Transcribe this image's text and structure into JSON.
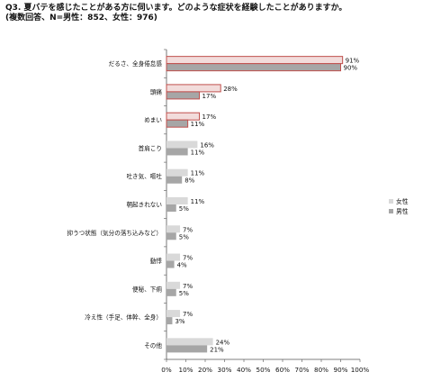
{
  "title_line1": "Q3. 夏バテを感じたことがある方に伺います。どのような症状を経験したことがありますか。",
  "title_line2": "(複数回答、N=男性：852、女性：976)",
  "colors": {
    "female": "#d9d9d9",
    "male": "#a6a6a6",
    "highlight": "#c0504d",
    "female_highlight": "#f2dcdb",
    "axis": "#555555"
  },
  "chart_data": {
    "type": "bar",
    "orientation": "horizontal",
    "categories": [
      "だるさ、全身倦怠感",
      "頭痛",
      "めまい",
      "首肩こり",
      "吐き気、嘔吐",
      "朝起きれない",
      "抑うつ状態（気分の落ち込みなど）",
      "動悸",
      "便秘、下痢",
      "冷え性（手足、体幹、全身）",
      "その他"
    ],
    "series": [
      {
        "name": "女性",
        "values": [
          91,
          28,
          17,
          16,
          11,
          11,
          7,
          7,
          7,
          7,
          24
        ]
      },
      {
        "name": "男性",
        "values": [
          90,
          17,
          11,
          11,
          8,
          5,
          5,
          4,
          5,
          3,
          21
        ]
      }
    ],
    "highlighted_categories": [
      0,
      1,
      2
    ],
    "xlim": [
      0,
      100
    ],
    "xticks": [
      "0%",
      "10%",
      "20%",
      "30%",
      "40%",
      "50%",
      "60%",
      "70%",
      "80%",
      "90%",
      "100%"
    ],
    "value_suffix": "%",
    "legend_position": "right",
    "grid": false
  }
}
